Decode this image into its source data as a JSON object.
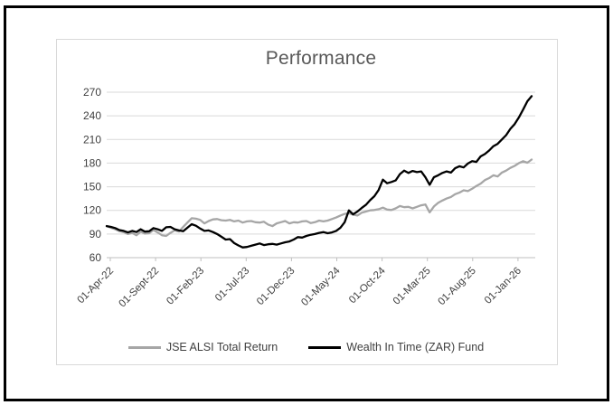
{
  "chart_data": {
    "type": "line",
    "title": "Performance",
    "xlabel": "",
    "ylabel": "",
    "y_axis": {
      "min": 60,
      "max": 270,
      "ticks": [
        270,
        240,
        210,
        180,
        150,
        120,
        90,
        60
      ]
    },
    "x_axis": {
      "tick_labels": [
        "01-Apr-22",
        "01-Sept-22",
        "01-Feb-23",
        "01-Jul-23",
        "01-Dec-23",
        "01-May-24",
        "01-Oct-24",
        "01-Mar-25",
        "01-Aug-25",
        "01-Jan-26"
      ]
    },
    "grid": true,
    "legend_position": "bottom",
    "colors": {
      "gridline": "#d9d9d9",
      "axis": "#bfbfbf",
      "tick_text": "#404040",
      "title_text": "#595959"
    },
    "series": [
      {
        "name": "JSE ALSI Total Return",
        "color": "#a6a6a6",
        "values": [
          100,
          98,
          96,
          93.5,
          92.5,
          90,
          91.5,
          88.5,
          93,
          90.5,
          91,
          95,
          92,
          88.5,
          87.5,
          91.5,
          94.5,
          93,
          99,
          104.5,
          110,
          109.5,
          108,
          103.5,
          106.5,
          108.5,
          109,
          107.5,
          107,
          108,
          106,
          107,
          104.5,
          106,
          106.5,
          105,
          104.5,
          105.5,
          102,
          100,
          103.5,
          105,
          106.5,
          103.5,
          105,
          104.5,
          106,
          106.5,
          104,
          105,
          107,
          106,
          107,
          109,
          111,
          113.5,
          115.5,
          116.5,
          114.5,
          113.5,
          117,
          118.5,
          120,
          120.5,
          121.5,
          123.5,
          121,
          120.5,
          122.5,
          125.5,
          124,
          124.5,
          122.5,
          124.5,
          126.5,
          127.5,
          117.5,
          125,
          129.5,
          132.5,
          135,
          137,
          140.5,
          142.5,
          145.5,
          144.5,
          147.5,
          151,
          154,
          158.5,
          161,
          164.5,
          163,
          168,
          170.5,
          174,
          176.5,
          180,
          182.5,
          180.5,
          184.5
        ]
      },
      {
        "name": "Wealth In Time (ZAR) Fund",
        "color": "#000000",
        "values": [
          100,
          99,
          97.5,
          95,
          94,
          92,
          94,
          92.5,
          96,
          93,
          93.5,
          97.5,
          96,
          94,
          98.5,
          99,
          96,
          94.5,
          93.5,
          98,
          102.5,
          100.5,
          97,
          94,
          94.5,
          92.5,
          90,
          86.5,
          83,
          83.5,
          78.5,
          75.5,
          73,
          73.5,
          75,
          76.5,
          78,
          76,
          77,
          77.5,
          76.5,
          78,
          79.5,
          80.5,
          83,
          86,
          85.5,
          87.5,
          89,
          90,
          91.5,
          92.5,
          91,
          92,
          94,
          98,
          105,
          120,
          115,
          118.5,
          123,
          127,
          133,
          138,
          146,
          159,
          154.5,
          156,
          158,
          166,
          170.5,
          167.5,
          170,
          168.5,
          169.5,
          162,
          152.5,
          162,
          164.5,
          167.5,
          169.5,
          168,
          173.5,
          176,
          174.5,
          179.5,
          182.5,
          181.5,
          188.5,
          191.5,
          196,
          201.5,
          204.5,
          210,
          215.5,
          223.5,
          229.5,
          238,
          248,
          258.5,
          265
        ]
      }
    ]
  }
}
